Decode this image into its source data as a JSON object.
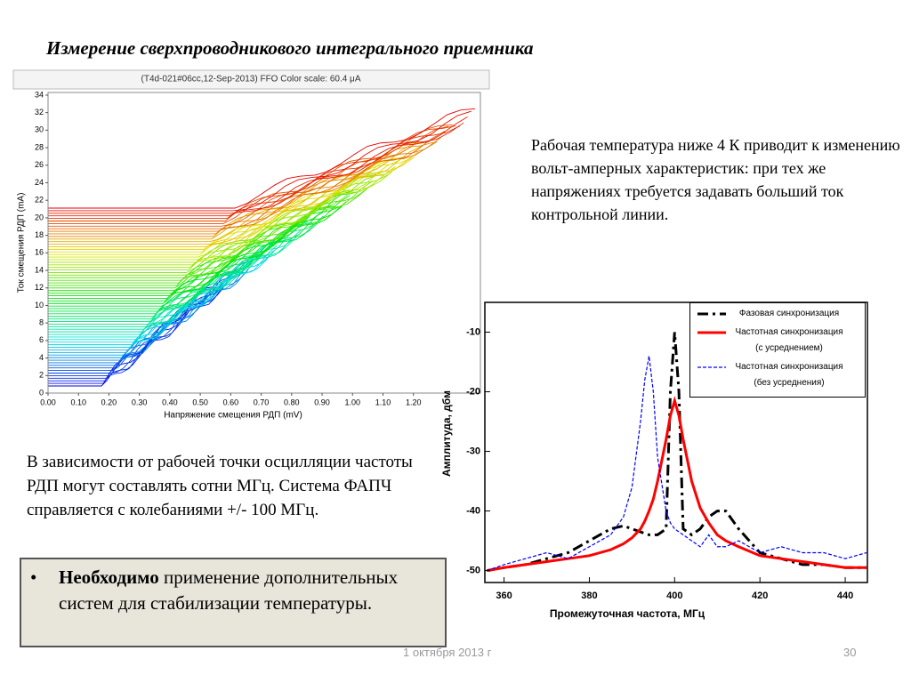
{
  "slide": {
    "title": "Измерение сверхпроводникового интегрального приемника",
    "right_text": "Рабочая температура ниже 4 К приводит к изменению вольт-амперных характеристик: при тех же напряжениях требуется задавать больший ток контрольной линии.",
    "left_text": "В зависимости от рабочей точки осцилляции частоты РДП могут составлять сотни МГц. Система ФАПЧ справляется с колебаниями +/- 100 МГц.",
    "bullet_bold": "Необходимо",
    "bullet_text": " применение дополнительных систем для стабилизации температуры.",
    "date": "1 октября 2013 г",
    "page": "30"
  },
  "chart_data": [
    {
      "type": "line",
      "title": "(T4d-021#06cc,12-Sep-2013) FFO Color scale: 60.4 μA",
      "x_label": "Напряжение смещения РДП (mV)",
      "y_label": "Ток смещения РДП (mA)",
      "xlim": [
        0,
        1.42
      ],
      "ylim": [
        0,
        34.3
      ],
      "xticks": [
        {
          "value": 0,
          "label": "0.00"
        },
        {
          "value": 0.1,
          "label": "0.10"
        },
        {
          "value": 0.2,
          "label": "0.20"
        },
        {
          "value": 0.3,
          "label": "0.30"
        },
        {
          "value": 0.4,
          "label": "0.40"
        },
        {
          "value": 0.5,
          "label": "0.50"
        },
        {
          "value": 0.6,
          "label": "0.60"
        },
        {
          "value": 0.7,
          "label": "0.70"
        },
        {
          "value": 0.8,
          "label": "0.80"
        },
        {
          "value": 0.9,
          "label": "0.90"
        },
        {
          "value": 1.0,
          "label": "1.00"
        },
        {
          "value": 1.1,
          "label": "1.10"
        },
        {
          "value": 1.2,
          "label": "1.20"
        }
      ],
      "yticks": [
        0,
        2,
        4,
        6,
        8,
        10,
        12,
        14,
        16,
        18,
        20,
        22,
        24,
        26,
        28,
        30,
        32,
        34
      ]
    },
    {
      "type": "line",
      "x_label": "Промежуточная частота, МГц",
      "y_label": "Амплитуда, дбм",
      "xlim": [
        355.5,
        445.2
      ],
      "ylim": [
        -52,
        -5
      ],
      "xticks": [
        360,
        380,
        400,
        420,
        440
      ],
      "yticks": [
        -10,
        -20,
        -30,
        -40,
        -50
      ],
      "x": [
        356,
        360,
        365,
        370,
        375,
        380,
        385,
        388,
        390,
        392,
        393,
        394,
        395,
        396,
        398,
        399,
        400,
        401,
        402,
        404,
        406,
        408,
        410,
        412,
        415,
        420,
        425,
        430,
        435,
        440,
        445
      ],
      "series": [
        {
          "name": "Фазовая синхронизация",
          "color": "#000000",
          "dash": "dash-dot",
          "values": [
            -50,
            -49.5,
            -49,
            -48,
            -47,
            -45,
            -43,
            -42.5,
            -43,
            -43.5,
            -43.8,
            -44,
            -44,
            -44,
            -43,
            -20,
            -10,
            -20,
            -43,
            -44,
            -43,
            -41,
            -40,
            -40,
            -43,
            -47,
            -48,
            -49,
            -49,
            -49.5,
            -49.5
          ]
        },
        {
          "name": "Частотная синхронизация (с усреднением)",
          "color": "#ff0000",
          "dash": "solid",
          "values": [
            -50,
            -49.5,
            -49,
            -48.5,
            -48,
            -47.5,
            -46.5,
            -45.5,
            -44.5,
            -43,
            -41.7,
            -40,
            -38,
            -35,
            -28,
            -24,
            -21.5,
            -24,
            -28,
            -35,
            -39.5,
            -42,
            -44,
            -45,
            -46,
            -47.5,
            -48,
            -48.5,
            -49,
            -49.5,
            -49.5
          ]
        },
        {
          "name": "Частотная синхронизация (без усреднения)",
          "color": "#0000ff",
          "dash": "dashed",
          "values": [
            -50,
            -49,
            -48,
            -47,
            -48,
            -46,
            -44,
            -41,
            -36,
            -25,
            -18,
            -14,
            -20,
            -31,
            -40,
            -42,
            -43,
            -43.5,
            -44,
            -45,
            -46,
            -44,
            -46,
            -46,
            -45,
            -47,
            -46,
            -47,
            -47,
            -48,
            -47
          ]
        }
      ]
    }
  ]
}
